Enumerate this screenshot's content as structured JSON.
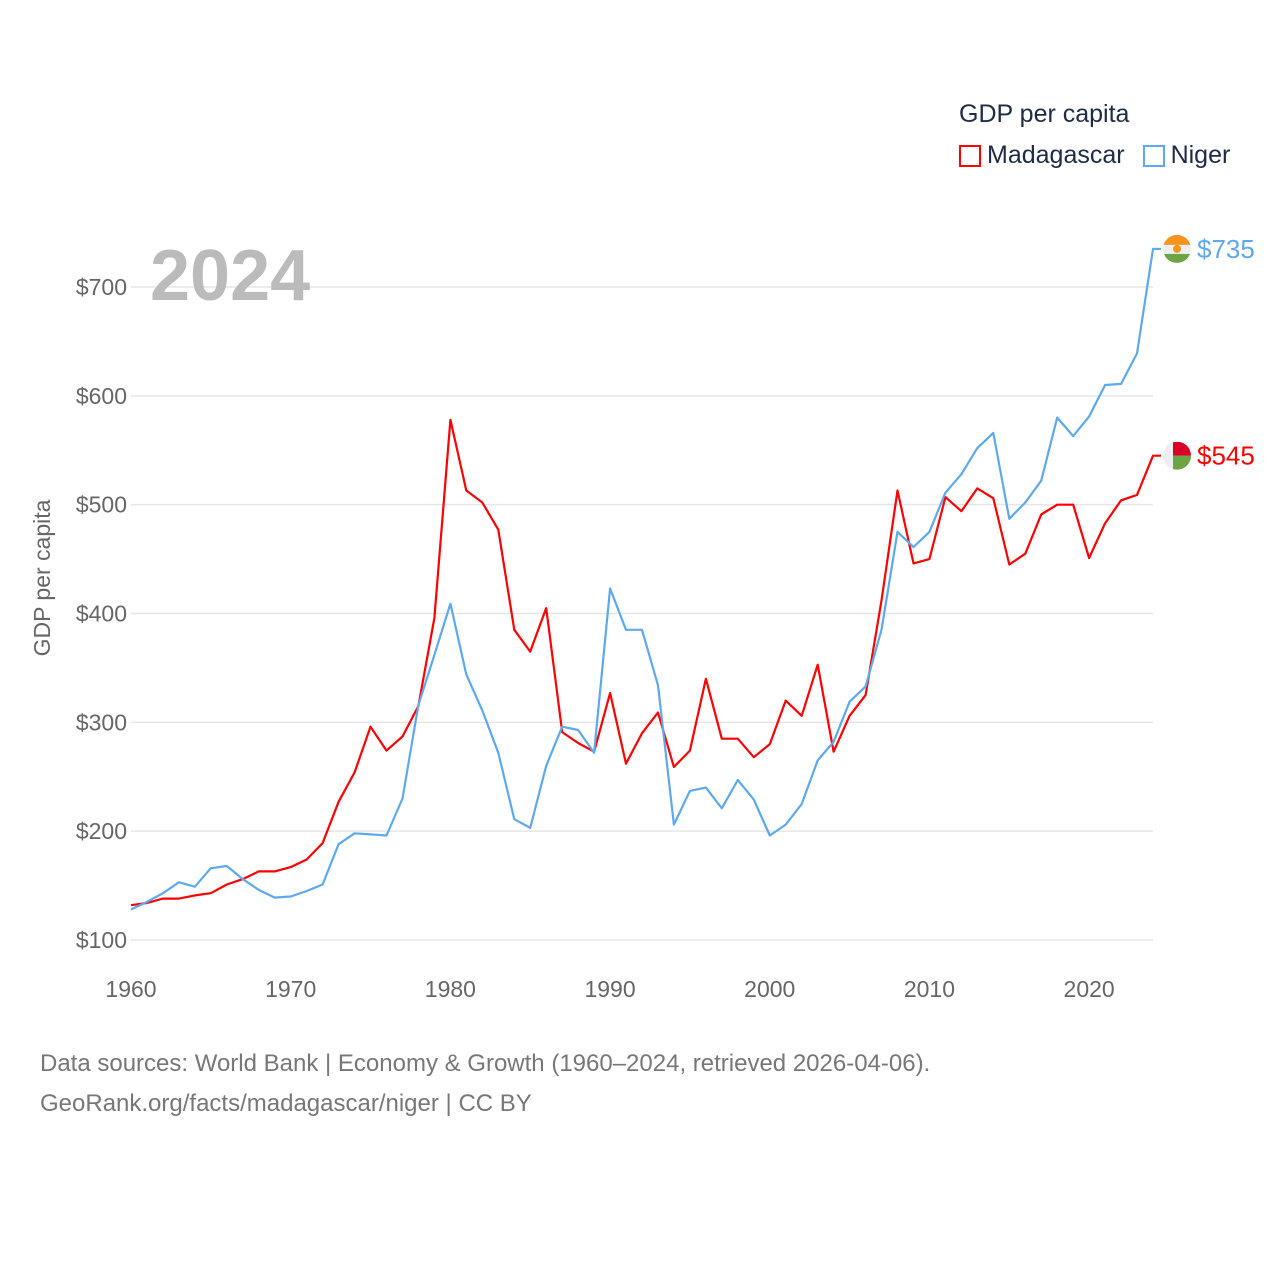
{
  "chart_data": {
    "type": "line",
    "title": "GDP per capita",
    "ylabel": "GDP per capita",
    "xlabel": "",
    "year_label": "2024",
    "xlim": [
      1960,
      2024
    ],
    "ylim": [
      100,
      760
    ],
    "x_ticks": [
      1960,
      1970,
      1980,
      1990,
      2000,
      2010,
      2020
    ],
    "y_ticks": [
      100,
      200,
      300,
      400,
      500,
      600,
      700
    ],
    "y_tick_labels": [
      "$100",
      "$200",
      "$300",
      "$400",
      "$500",
      "$600",
      "$700"
    ],
    "grid": true,
    "legend_placement": "top-right",
    "x": [
      1960,
      1961,
      1962,
      1963,
      1964,
      1965,
      1966,
      1967,
      1968,
      1969,
      1970,
      1971,
      1972,
      1973,
      1974,
      1975,
      1976,
      1977,
      1978,
      1979,
      1980,
      1981,
      1982,
      1983,
      1984,
      1985,
      1986,
      1987,
      1988,
      1989,
      1990,
      1991,
      1992,
      1993,
      1994,
      1995,
      1996,
      1997,
      1998,
      1999,
      2000,
      2001,
      2002,
      2003,
      2004,
      2005,
      2006,
      2007,
      2008,
      2009,
      2010,
      2011,
      2012,
      2013,
      2014,
      2015,
      2016,
      2017,
      2018,
      2019,
      2020,
      2021,
      2022,
      2023,
      2024
    ],
    "series": [
      {
        "name": "Madagascar",
        "color": "#ff0000",
        "end_label": "$545",
        "flag": "madagascar-flag",
        "values": [
          132,
          134,
          138,
          138,
          141,
          143,
          151,
          156,
          163,
          163,
          167,
          174,
          189,
          227,
          254,
          296,
          274,
          287,
          315,
          396,
          578,
          513,
          502,
          477,
          385,
          365,
          405,
          291,
          281,
          273,
          327,
          262,
          290,
          309,
          259,
          274,
          340,
          285,
          285,
          268,
          280,
          320,
          306,
          353,
          273,
          306,
          325,
          412,
          513,
          446,
          450,
          507,
          494,
          515,
          506,
          445,
          455,
          491,
          500,
          500,
          451,
          483,
          504,
          509,
          545
        ]
      },
      {
        "name": "Niger",
        "color": "#5ea8ec",
        "end_label": "$735",
        "flag": "niger-flag",
        "values": [
          128,
          135,
          143,
          153,
          149,
          166,
          168,
          156,
          146,
          139,
          140,
          145,
          151,
          188,
          198,
          197,
          196,
          230,
          316,
          362,
          409,
          344,
          311,
          272,
          211,
          203,
          260,
          296,
          293,
          272,
          423,
          385,
          385,
          334,
          206,
          237,
          240,
          221,
          247,
          229,
          196,
          206,
          225,
          265,
          282,
          319,
          333,
          385,
          475,
          461,
          475,
          511,
          528,
          552,
          566,
          487,
          502,
          522,
          580,
          563,
          581,
          610,
          611,
          639,
          735
        ]
      }
    ]
  },
  "legend": {
    "title": "GDP per capita",
    "items": [
      "Madagascar",
      "Niger"
    ]
  },
  "source": {
    "line1": "Data sources: World Bank | Economy & Growth (1960–2024, retrieved 2026-04-06).",
    "line2": "GeoRank.org/facts/madagascar/niger | CC BY"
  }
}
